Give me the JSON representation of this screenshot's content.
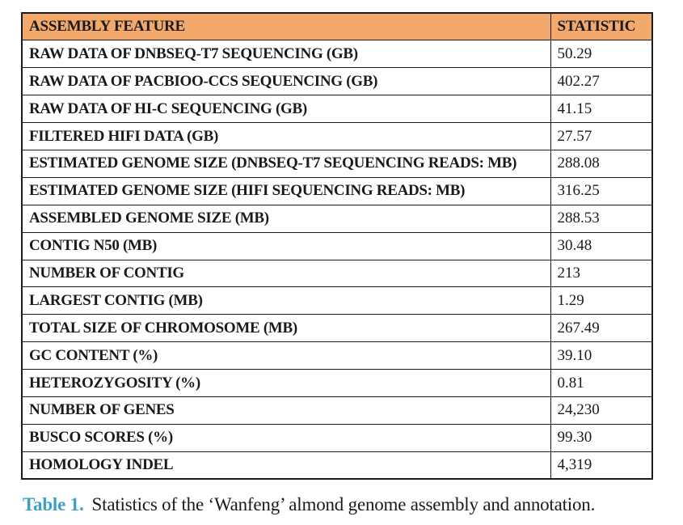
{
  "colors": {
    "header_bg": "#F2A96B",
    "border": "#1A1A1A",
    "text": "#1A1A1A",
    "caption_accent": "#3E9FCB",
    "page_bg": "#FFFFFF"
  },
  "table": {
    "columns": [
      "ASSEMBLY FEATURE",
      "STATISTIC"
    ],
    "rows": [
      {
        "feature": "RAW DATA OF DNBSEQ-T7 SEQUENCING (GB)",
        "statistic": "50.29"
      },
      {
        "feature": "RAW DATA OF PACBIOO-CCS SEQUENCING (GB)",
        "statistic": "402.27"
      },
      {
        "feature": "RAW DATA OF HI-C SEQUENCING (GB)",
        "statistic": "41.15"
      },
      {
        "feature": "FILTERED HIFI DATA (GB)",
        "statistic": "27.57"
      },
      {
        "feature": "ESTIMATED GENOME SIZE (DNBSEQ-T7 SEQUENCING READS: MB)",
        "statistic": "288.08"
      },
      {
        "feature": "ESTIMATED GENOME SIZE (HIFI SEQUENCING READS: MB)",
        "statistic": "316.25"
      },
      {
        "feature": "ASSEMBLED GENOME SIZE (MB)",
        "statistic": "288.53"
      },
      {
        "feature": "CONTIG N50 (MB)",
        "statistic": "30.48"
      },
      {
        "feature": "NUMBER OF CONTIG",
        "statistic": "213"
      },
      {
        "feature": "LARGEST CONTIG (MB)",
        "statistic": "1.29"
      },
      {
        "feature": "TOTAL SIZE OF CHROMOSOME (MB)",
        "statistic": "267.49"
      },
      {
        "feature": "GC CONTENT (%)",
        "statistic": "39.10"
      },
      {
        "feature": "HETEROZYGOSITY (%)",
        "statistic": "0.81"
      },
      {
        "feature": "NUMBER OF GENES",
        "statistic": "24,230"
      },
      {
        "feature": "BUSCO SCORES (%)",
        "statistic": "99.30"
      },
      {
        "feature": "HOMOLOGY INDEL",
        "statistic": "4,319"
      }
    ]
  },
  "caption": {
    "label": "Table 1.",
    "text": "Statistics of the ‘Wanfeng’ almond genome assembly and annotation."
  }
}
